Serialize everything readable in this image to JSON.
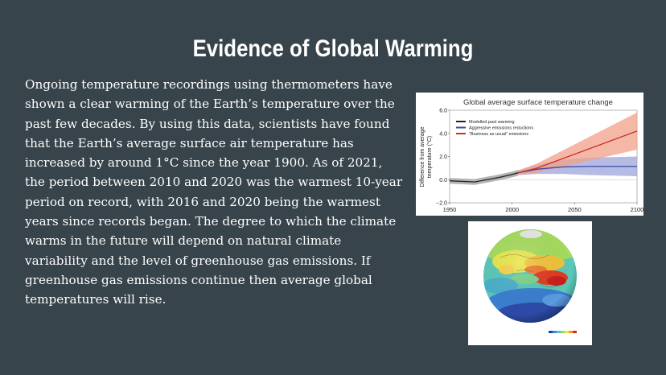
{
  "slide": {
    "title": "Evidence of Global Warming",
    "paragraph": "Ongoing temperature recordings using thermometers have shown a clear warming of the Earth’s temperature over the past few decades.  By using this data, scientists have found that the Earth’s average surface air temperature has increased by around 1°C since the year 1900. As of 2021, the period between 2010 and 2020 was the warmest 10-year period on record, with 2016 and 2020 being the warmest years since records began. The degree to which the climate warms in the future will depend on natural climate variability and the level of greenhouse gas emissions. If greenhouse gas emissions continue then average global temperatures will rise."
  },
  "chart_data": {
    "type": "line",
    "title": "Global average surface temperature change",
    "ylabel_line1": "Difference from average",
    "ylabel_line2": "temperature (°C)",
    "xlim": [
      1950,
      2100
    ],
    "ylim": [
      -2.0,
      6.0
    ],
    "x_ticks": [
      "1950",
      "2000",
      "2050",
      "2100"
    ],
    "y_ticks": [
      "−2.0",
      "0.0",
      "2.0",
      "4.0",
      "6.0"
    ],
    "legend_position": "top-left",
    "series": [
      {
        "name": "Modelled past warming",
        "color": "#222222",
        "x": [
          1950,
          1960,
          1970,
          1980,
          1990,
          2000,
          2005
        ],
        "y": [
          -0.1,
          -0.15,
          -0.2,
          0.0,
          0.2,
          0.45,
          0.6
        ],
        "band": [
          0.25,
          0.25,
          0.25,
          0.25,
          0.25,
          0.25,
          0.25
        ]
      },
      {
        "name": "Aggressive emissions reductions",
        "color": "#3a4aa8",
        "x": [
          2005,
          2020,
          2040,
          2060,
          2080,
          2100
        ],
        "y": [
          0.6,
          0.9,
          1.1,
          1.15,
          1.15,
          1.15
        ],
        "band": [
          0.2,
          0.4,
          0.6,
          0.75,
          0.8,
          0.85
        ]
      },
      {
        "name": "“Business as usual” emissions",
        "color": "#c8302a",
        "x": [
          2005,
          2020,
          2040,
          2060,
          2080,
          2100
        ],
        "y": [
          0.6,
          1.0,
          1.8,
          2.6,
          3.4,
          4.2
        ],
        "band": [
          0.2,
          0.4,
          0.7,
          1.0,
          1.3,
          1.6
        ]
      }
    ]
  },
  "globe": {
    "colorbar": [
      "#2c3e9c",
      "#3a8fd6",
      "#54c6c0",
      "#9bdc5c",
      "#f2e43a",
      "#f59a2b",
      "#d92b1f"
    ]
  }
}
